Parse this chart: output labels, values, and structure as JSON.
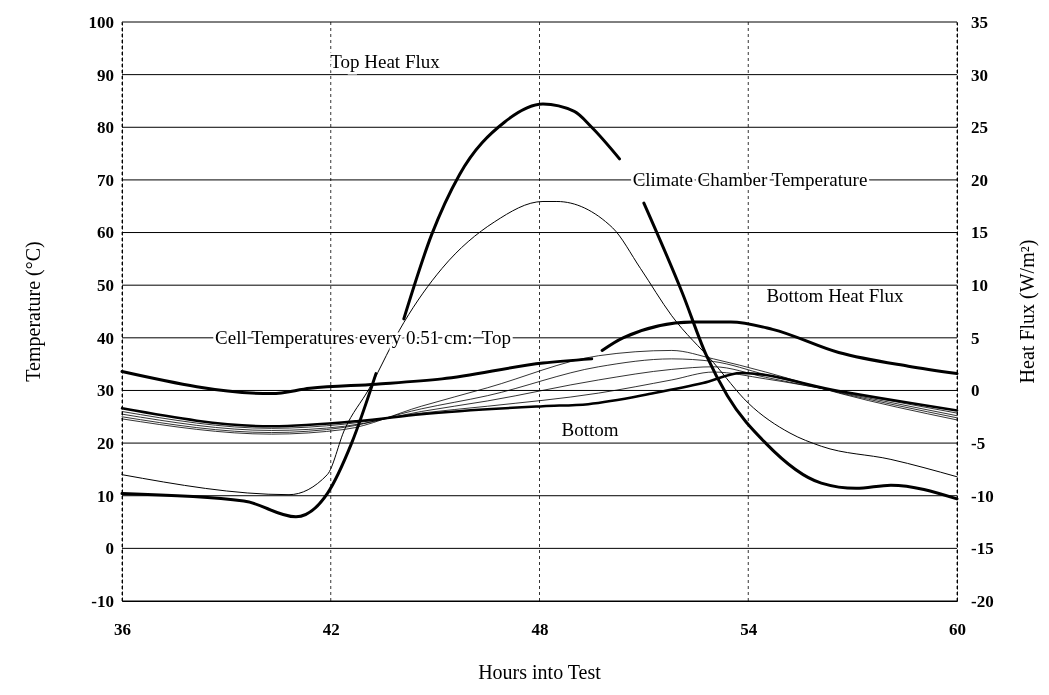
{
  "chart_data": {
    "type": "line",
    "xlabel": "Hours into Test",
    "ylabel": "Temperature (°C)",
    "y2label": "Heat Flux (W/m²)",
    "xlim": [
      36,
      60
    ],
    "xticks": [
      36,
      42,
      48,
      54,
      60
    ],
    "ylim": [
      -10,
      100
    ],
    "yticks": [
      -10,
      0,
      10,
      20,
      30,
      40,
      50,
      60,
      70,
      80,
      90,
      100
    ],
    "y2lim": [
      -20,
      35
    ],
    "y2ticks": [
      -20,
      -15,
      -10,
      -5,
      0,
      5,
      10,
      15,
      20,
      25,
      30,
      35
    ],
    "grid": true,
    "marker": "none",
    "line_style": "solid",
    "series": [
      {
        "color": "#000000",
        "axis": "y2",
        "x": [
          36,
          39.5,
          41,
          41.9,
          42.6,
          43.3,
          43.5,
          44.1,
          44.9,
          45.7,
          47,
          48.1,
          49,
          49.5,
          50.3,
          50.6,
          51,
          52.1,
          52.8,
          53.4,
          54.5,
          56.1,
          57.1,
          58.1,
          60
        ],
        "values": [
          -9.8,
          -10.5,
          -12,
          -9.8,
          -5,
          1.6,
          null,
          6.8,
          14.8,
          20.5,
          25.5,
          27.2,
          26.5,
          25,
          22,
          null,
          17.8,
          9.3,
          3.3,
          -0.5,
          -5,
          -8.8,
          -9.3,
          -9,
          -10.3
        ]
      },
      {
        "color": "#000000",
        "axis": "y2",
        "x": [
          36,
          40.3,
          41.4,
          43.3,
          45.2,
          48.1,
          49.5,
          49.65,
          49.8,
          50.4,
          52.4,
          53.5,
          54.7,
          56.6,
          58.6,
          60
        ],
        "values": [
          1.8,
          -0.3,
          0.2,
          0.6,
          1.1,
          2.6,
          3,
          null,
          3.8,
          5,
          6.5,
          6.5,
          5.8,
          3.6,
          2.3,
          1.6
        ]
      },
      {
        "color": "#000000",
        "x": [
          36,
          40.8,
          41.9,
          42.4,
          43.1,
          44.1,
          45.2,
          46.7,
          48.1,
          48.5,
          50.1,
          50.9,
          51.8,
          53,
          54,
          55.2,
          56.1,
          58.1,
          60
        ],
        "values": [
          14,
          10.2,
          14,
          22.6,
          30.3,
          42.9,
          53.2,
          62,
          65.9,
          65.9,
          60.9,
          53.2,
          44.2,
          35.3,
          27.6,
          21.9,
          19.4,
          16.9,
          13.6
        ]
      },
      {
        "color": "#000000",
        "x": [
          36,
          40.3,
          42.8,
          44.6,
          48.1,
          49.4,
          51.3,
          52.7,
          53.8,
          56.6,
          60
        ],
        "values": [
          26.6,
          23.2,
          24.2,
          25.5,
          27,
          27.4,
          29.5,
          31.4,
          33.3,
          29.9,
          26.2
        ]
      },
      {
        "color": "#000000",
        "x": [
          36,
          40.3,
          42.4,
          44.6,
          46.5,
          49.7,
          51.8,
          53,
          54.5,
          56.6,
          60
        ],
        "values": [
          26,
          22.8,
          23.6,
          25.7,
          27,
          29.5,
          32,
          33.5,
          32.2,
          29.8,
          25.7
        ]
      },
      {
        "color": "#000000",
        "x": [
          36,
          40.3,
          42.4,
          44.6,
          46.5,
          49.7,
          51.8,
          53,
          54.5,
          56.6,
          60
        ],
        "values": [
          25.5,
          22.4,
          23.2,
          26,
          28,
          32,
          34,
          34.5,
          32.5,
          29.7,
          25.2
        ]
      },
      {
        "color": "#000000",
        "x": [
          36,
          40.3,
          42.4,
          44.6,
          46.5,
          49.7,
          51.8,
          53,
          54.5,
          56.6,
          60
        ],
        "values": [
          25,
          22,
          23,
          26.5,
          29,
          34.5,
          36,
          35.5,
          33,
          29.6,
          24.8
        ]
      },
      {
        "color": "#000000",
        "x": [
          36,
          40.3,
          42.4,
          44.6,
          46.5,
          49.7,
          51.8,
          53,
          54.5,
          56.6,
          60
        ],
        "values": [
          24.6,
          21.7,
          22.6,
          27,
          30.5,
          36.6,
          37.6,
          36,
          33.5,
          29.5,
          24.4
        ]
      }
    ],
    "annotations": [
      "Top Heat Flux",
      "Climate Chamber Temperature",
      "Bottom Heat Flux",
      "Cell Temperatures every 0.51 cm:  Top",
      "Bottom"
    ]
  }
}
